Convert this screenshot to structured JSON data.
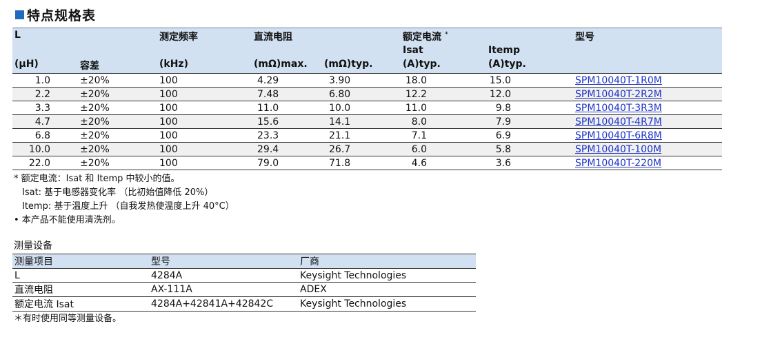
{
  "section_title": "特点规格表",
  "spec_table": {
    "headers": {
      "L": "L",
      "L_unit": "(μH)",
      "tolerance": "容差",
      "freq": "测定频率",
      "freq_unit": "(kHz)",
      "dcr": "直流电阻",
      "dcr_max": "(mΩ)max.",
      "dcr_typ": "(mΩ)typ.",
      "rated": "额定电流",
      "rated_mark": "*",
      "isat": "Isat",
      "isat_unit": "(A)typ.",
      "itemp": "Itemp",
      "itemp_unit": "(A)typ.",
      "part": "型号"
    },
    "rows": [
      {
        "L": "1.0",
        "tol": "±20%",
        "freq": "100",
        "dcr_max": "4.29",
        "dcr_typ": "3.90",
        "isat": "18.0",
        "itemp": "15.0",
        "part": "SPM10040T-1R0M"
      },
      {
        "L": "2.2",
        "tol": "±20%",
        "freq": "100",
        "dcr_max": "7.48",
        "dcr_typ": "6.80",
        "isat": "12.2",
        "itemp": "12.0",
        "part": "SPM10040T-2R2M"
      },
      {
        "L": "3.3",
        "tol": "±20%",
        "freq": "100",
        "dcr_max": "11.0",
        "dcr_typ": "10.0",
        "isat": "11.0",
        "itemp": "9.8",
        "part": "SPM10040T-3R3M"
      },
      {
        "L": "4.7",
        "tol": "±20%",
        "freq": "100",
        "dcr_max": "15.6",
        "dcr_typ": "14.1",
        "isat": "8.0",
        "itemp": "7.9",
        "part": "SPM10040T-4R7M"
      },
      {
        "L": "6.8",
        "tol": "±20%",
        "freq": "100",
        "dcr_max": "23.3",
        "dcr_typ": "21.1",
        "isat": "7.1",
        "itemp": "6.9",
        "part": "SPM10040T-6R8M"
      },
      {
        "L": "10.0",
        "tol": "±20%",
        "freq": "100",
        "dcr_max": "29.4",
        "dcr_typ": "26.7",
        "isat": "6.0",
        "itemp": "5.8",
        "part": "SPM10040T-100M"
      },
      {
        "L": "22.0",
        "tol": "±20%",
        "freq": "100",
        "dcr_max": "79.0",
        "dcr_typ": "71.8",
        "isat": "4.6",
        "itemp": "3.6",
        "part": "SPM10040T-220M"
      }
    ]
  },
  "notes": [
    "* 额定电流：Isat 和 Itemp 中较小的值。",
    "Isat: 基于电感器变化率 （比初始值降低 20%）",
    "Itemp: 基于温度上升 （自我发热使温度上升 40°C）",
    "• 本产品不能使用清洗剂。"
  ],
  "measurement": {
    "title": "测量设备",
    "headers": [
      "测量项目",
      "型号",
      "厂商"
    ],
    "rows": [
      [
        "L",
        "4284A",
        "Keysight Technologies"
      ],
      [
        "直流电阻",
        "AX-111A",
        "ADEX"
      ],
      [
        "额定电流 Isat",
        "4284A+42841A+42842C",
        "Keysight Technologies"
      ]
    ],
    "footnote": "＊有时使用同等测量设备。"
  },
  "colors": {
    "header_bg": "#d2e1f2",
    "accent": "#1f6bbf",
    "link": "#1d33c8"
  }
}
